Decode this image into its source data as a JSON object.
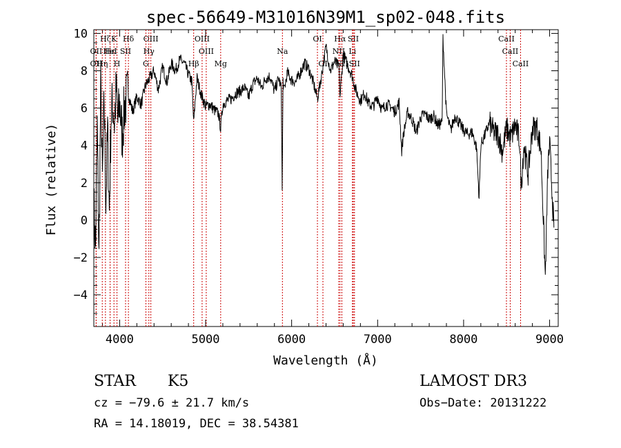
{
  "chart_data": {
    "type": "line",
    "title": "spec-56649-M31016N39M1_sp02-048.fits",
    "xlabel": "Wavelength (Å)",
    "ylabel": "Flux (relative)",
    "xlim": [
      3700,
      9100
    ],
    "ylim": [
      -5.7,
      10.2
    ],
    "xticks": [
      4000,
      5000,
      6000,
      7000,
      8000,
      9000
    ],
    "yticks": [
      -4,
      -2,
      0,
      2,
      4,
      6,
      8,
      10
    ],
    "grid": false,
    "series": [
      {
        "name": "flux",
        "x": [
          3700,
          3720,
          3740,
          3760,
          3780,
          3800,
          3820,
          3840,
          3860,
          3880,
          3900,
          3920,
          3940,
          3960,
          3980,
          4000,
          4030,
          4060,
          4100,
          4150,
          4200,
          4250,
          4300,
          4350,
          4400,
          4450,
          4500,
          4550,
          4600,
          4650,
          4700,
          4750,
          4800,
          4840,
          4861,
          4880,
          4900,
          4950,
          5000,
          5050,
          5100,
          5150,
          5175,
          5200,
          5250,
          5300,
          5350,
          5400,
          5450,
          5500,
          5550,
          5600,
          5650,
          5700,
          5750,
          5800,
          5850,
          5880,
          5890,
          5900,
          5910,
          5950,
          6000,
          6050,
          6100,
          6150,
          6200,
          6250,
          6300,
          6350,
          6400,
          6450,
          6500,
          6550,
          6563,
          6600,
          6650,
          6700,
          6750,
          6800,
          6850,
          6900,
          6950,
          7000,
          7050,
          7100,
          7150,
          7200,
          7250,
          7280,
          7300,
          7350,
          7400,
          7450,
          7500,
          7550,
          7600,
          7650,
          7700,
          7750,
          7760,
          7800,
          7850,
          7900,
          7950,
          8000,
          8050,
          8100,
          8150,
          8180,
          8200,
          8250,
          8300,
          8350,
          8400,
          8450,
          8500,
          8550,
          8600,
          8650,
          8670,
          8700,
          8750,
          8800,
          8850,
          8900,
          8950,
          8980,
          9000,
          9050
        ],
        "y": [
          0.8,
          -1.5,
          5,
          -2.2,
          7.2,
          2,
          6.5,
          1,
          4.8,
          0.5,
          5.5,
          6.3,
          5.2,
          7,
          5.2,
          6.3,
          4.5,
          6.2,
          6.8,
          5.8,
          6.6,
          6.2,
          7.2,
          7.6,
          8,
          7,
          8.2,
          7.4,
          8.4,
          8,
          8.6,
          8.4,
          7.8,
          7.4,
          5.2,
          6.5,
          7.6,
          6.7,
          6.1,
          6.2,
          5.9,
          5.7,
          4.9,
          6.2,
          6.4,
          6.5,
          6.8,
          6.9,
          7.1,
          6.6,
          7.3,
          7.6,
          7.1,
          7.6,
          7.7,
          6.9,
          7.6,
          7,
          1.6,
          7.5,
          6.9,
          7.9,
          7.5,
          7.4,
          7.9,
          8.4,
          8.1,
          7.4,
          6.5,
          7.8,
          9.3,
          8,
          8.5,
          8.2,
          6.6,
          8.9,
          8.3,
          7.8,
          6.9,
          6.4,
          6.8,
          6.2,
          6.1,
          6.6,
          5.9,
          6.2,
          6.1,
          5.8,
          6.3,
          3.7,
          4.6,
          5.8,
          5.4,
          4.7,
          5.5,
          5.7,
          5.4,
          5.6,
          5.1,
          5.2,
          9.8,
          5.7,
          4.8,
          5.6,
          5.2,
          4.8,
          4.6,
          4.7,
          3.9,
          1.2,
          4,
          4.6,
          5.2,
          4.7,
          4.6,
          3.7,
          4.9,
          4.4,
          5.1,
          4.3,
          1.8,
          4,
          2.5,
          4.9,
          5,
          3.8,
          -3.1,
          2.8,
          4.1,
          -0.4
        ]
      }
    ],
    "lines": [
      {
        "label": "Hδ",
        "wl": 4102,
        "row": 1
      },
      {
        "label": "K",
        "wl": 3934,
        "row": 1
      },
      {
        "label": "H",
        "wl": 3969,
        "row": 3
      },
      {
        "label": "OIII",
        "wl": 4363,
        "row": 1
      },
      {
        "label": "Hγ",
        "wl": 4340,
        "row": 2
      },
      {
        "label": "G",
        "wl": 4305,
        "row": 3
      },
      {
        "label": "OII",
        "wl": 3727,
        "row": 3
      },
      {
        "label": "OII",
        "wl": 3727,
        "row": 2
      },
      {
        "label": "Hε",
        "wl": 3889,
        "row": 2
      },
      {
        "label": "Hζ",
        "wl": 3835,
        "row": 1
      },
      {
        "label": "HeI",
        "wl": 3889,
        "row": 2
      },
      {
        "label": "SII",
        "wl": 4069,
        "row": 2
      },
      {
        "label": "Hη",
        "wl": 3798,
        "row": 3
      },
      {
        "label": "Hβ",
        "wl": 4861,
        "row": 3
      },
      {
        "label": "OIII",
        "wl": 4959,
        "row": 1
      },
      {
        "label": "OIII",
        "wl": 5007,
        "row": 2
      },
      {
        "label": "Mg",
        "wl": 5175,
        "row": 3
      },
      {
        "label": "Na",
        "wl": 5893,
        "row": 2
      },
      {
        "label": "OI",
        "wl": 6300,
        "row": 1
      },
      {
        "label": "OI",
        "wl": 6364,
        "row": 3
      },
      {
        "label": "Hα",
        "wl": 6563,
        "row": 1
      },
      {
        "label": "NII",
        "wl": 6548,
        "row": 2
      },
      {
        "label": "NII",
        "wl": 6584,
        "row": 3
      },
      {
        "label": "SII",
        "wl": 6717,
        "row": 1
      },
      {
        "label": "Li",
        "wl": 6707,
        "row": 2
      },
      {
        "label": "SII",
        "wl": 6731,
        "row": 3
      },
      {
        "label": "CaII",
        "wl": 8498,
        "row": 1
      },
      {
        "label": "CaII",
        "wl": 8542,
        "row": 2
      },
      {
        "label": "CaII",
        "wl": 8662,
        "row": 3
      }
    ]
  },
  "info": {
    "class": "STAR",
    "subclass": "K5",
    "survey": "LAMOST DR3",
    "cz": "cz = −79.6 ± 21.7 km/s",
    "obs_date": "Obs−Date: 20131222",
    "coords": "RA =  14.18019, DEC =  38.54381"
  },
  "colors": {
    "axis": "#000000",
    "spectrum": "#000000",
    "lines": "#cc0000"
  }
}
